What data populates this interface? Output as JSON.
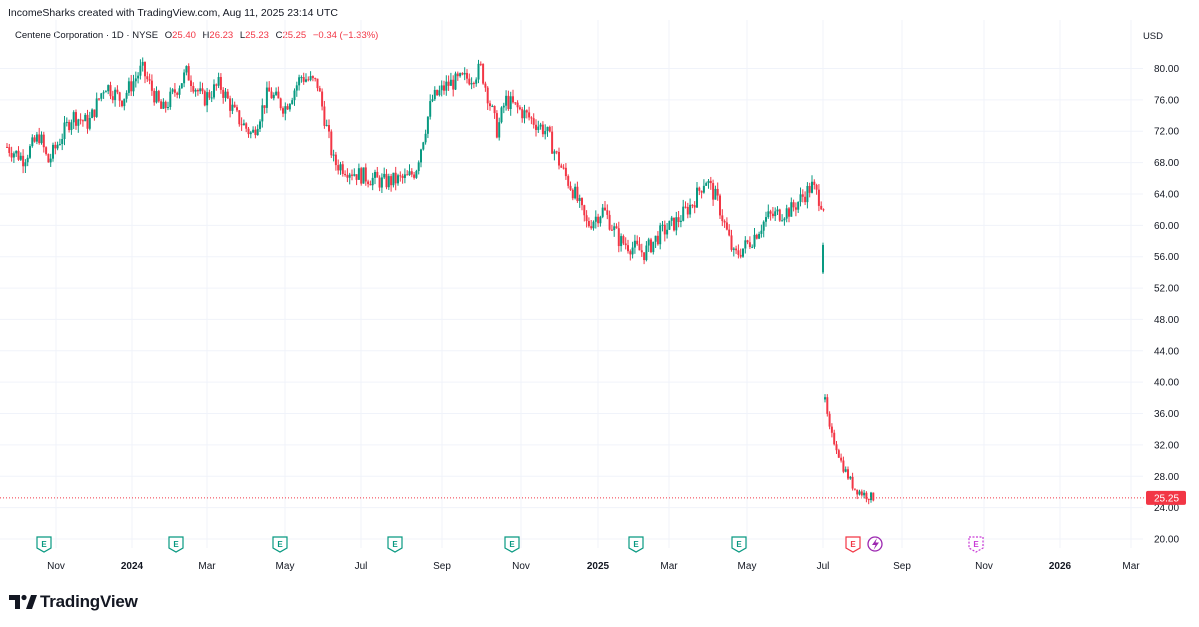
{
  "header": {
    "credit": "IncomeSharks created with TradingView.com, Aug 11, 2025 23:14 UTC"
  },
  "legend": {
    "symbol": "Centene Corporation · 1D · NYSE",
    "open_label": "O",
    "open": "25.40",
    "high_label": "H",
    "high": "26.23",
    "low_label": "L",
    "low": "25.23",
    "close_label": "C",
    "close": "25.25",
    "change": "−0.34 (−1.33%)"
  },
  "currency": "USD",
  "brand": "TradingView",
  "colors": {
    "up": "#089981",
    "down": "#f23645",
    "grid": "#f0f3fa",
    "price_line": "#f23645",
    "earnings": "#089981",
    "future_earnings": "#c93ad6",
    "dividend": "#9c27b0"
  },
  "chart_data": {
    "type": "candlestick",
    "y_axis": {
      "min": 20,
      "max": 80,
      "ticks": [
        "80.00",
        "76.00",
        "72.00",
        "68.00",
        "64.00",
        "60.00",
        "56.00",
        "52.00",
        "48.00",
        "44.00",
        "40.00",
        "36.00",
        "32.00",
        "28.00",
        "24.00",
        "20.00"
      ]
    },
    "x_axis": {
      "labels": [
        {
          "text": "Nov",
          "bold": false
        },
        {
          "text": "2024",
          "bold": true
        },
        {
          "text": "Mar",
          "bold": false
        },
        {
          "text": "May",
          "bold": false
        },
        {
          "text": "Jul",
          "bold": false
        },
        {
          "text": "Sep",
          "bold": false
        },
        {
          "text": "Nov",
          "bold": false
        },
        {
          "text": "2025",
          "bold": true
        },
        {
          "text": "Mar",
          "bold": false
        },
        {
          "text": "May",
          "bold": false
        },
        {
          "text": "Jul",
          "bold": false
        },
        {
          "text": "Sep",
          "bold": false
        },
        {
          "text": "Nov",
          "bold": false
        },
        {
          "text": "2026",
          "bold": true
        },
        {
          "text": "Mar",
          "bold": false
        }
      ]
    },
    "last_price": 25.25,
    "last_price_label": "25.25",
    "price_path": [
      [
        0,
        70
      ],
      [
        0.02,
        68.5
      ],
      [
        0.04,
        71.5
      ],
      [
        0.05,
        68
      ],
      [
        0.08,
        74
      ],
      [
        0.1,
        73
      ],
      [
        0.12,
        78
      ],
      [
        0.14,
        76
      ],
      [
        0.165,
        80
      ],
      [
        0.19,
        74.5
      ],
      [
        0.205,
        77
      ],
      [
        0.22,
        79.5
      ],
      [
        0.24,
        76
      ],
      [
        0.26,
        78
      ],
      [
        0.28,
        74
      ],
      [
        0.3,
        71.5
      ],
      [
        0.32,
        77
      ],
      [
        0.34,
        75
      ],
      [
        0.36,
        79
      ],
      [
        0.38,
        78
      ],
      [
        0.4,
        68
      ],
      [
        0.43,
        66.5
      ],
      [
        0.46,
        65.5
      ],
      [
        0.49,
        66
      ],
      [
        0.5,
        67
      ],
      [
        0.52,
        76
      ],
      [
        0.54,
        78
      ],
      [
        0.57,
        79
      ],
      [
        0.58,
        80
      ],
      [
        0.6,
        72
      ],
      [
        0.61,
        76
      ],
      [
        0.63,
        74.5
      ],
      [
        0.66,
        72
      ],
      [
        0.68,
        67
      ],
      [
        0.695,
        64
      ],
      [
        0.71,
        60
      ],
      [
        0.73,
        62
      ],
      [
        0.75,
        58
      ],
      [
        0.78,
        56.5
      ],
      [
        0.8,
        59
      ],
      [
        0.82,
        60.5
      ],
      [
        0.84,
        63
      ],
      [
        0.855,
        66
      ],
      [
        0.87,
        63
      ],
      [
        0.89,
        56
      ],
      [
        0.91,
        58
      ],
      [
        0.93,
        61
      ],
      [
        0.96,
        62
      ],
      [
        0.985,
        65
      ],
      [
        1.0,
        62.5
      ]
    ],
    "earnings_markers": [
      "E",
      "E",
      "E",
      "E",
      "E",
      "E",
      "E",
      "E",
      "E"
    ]
  }
}
